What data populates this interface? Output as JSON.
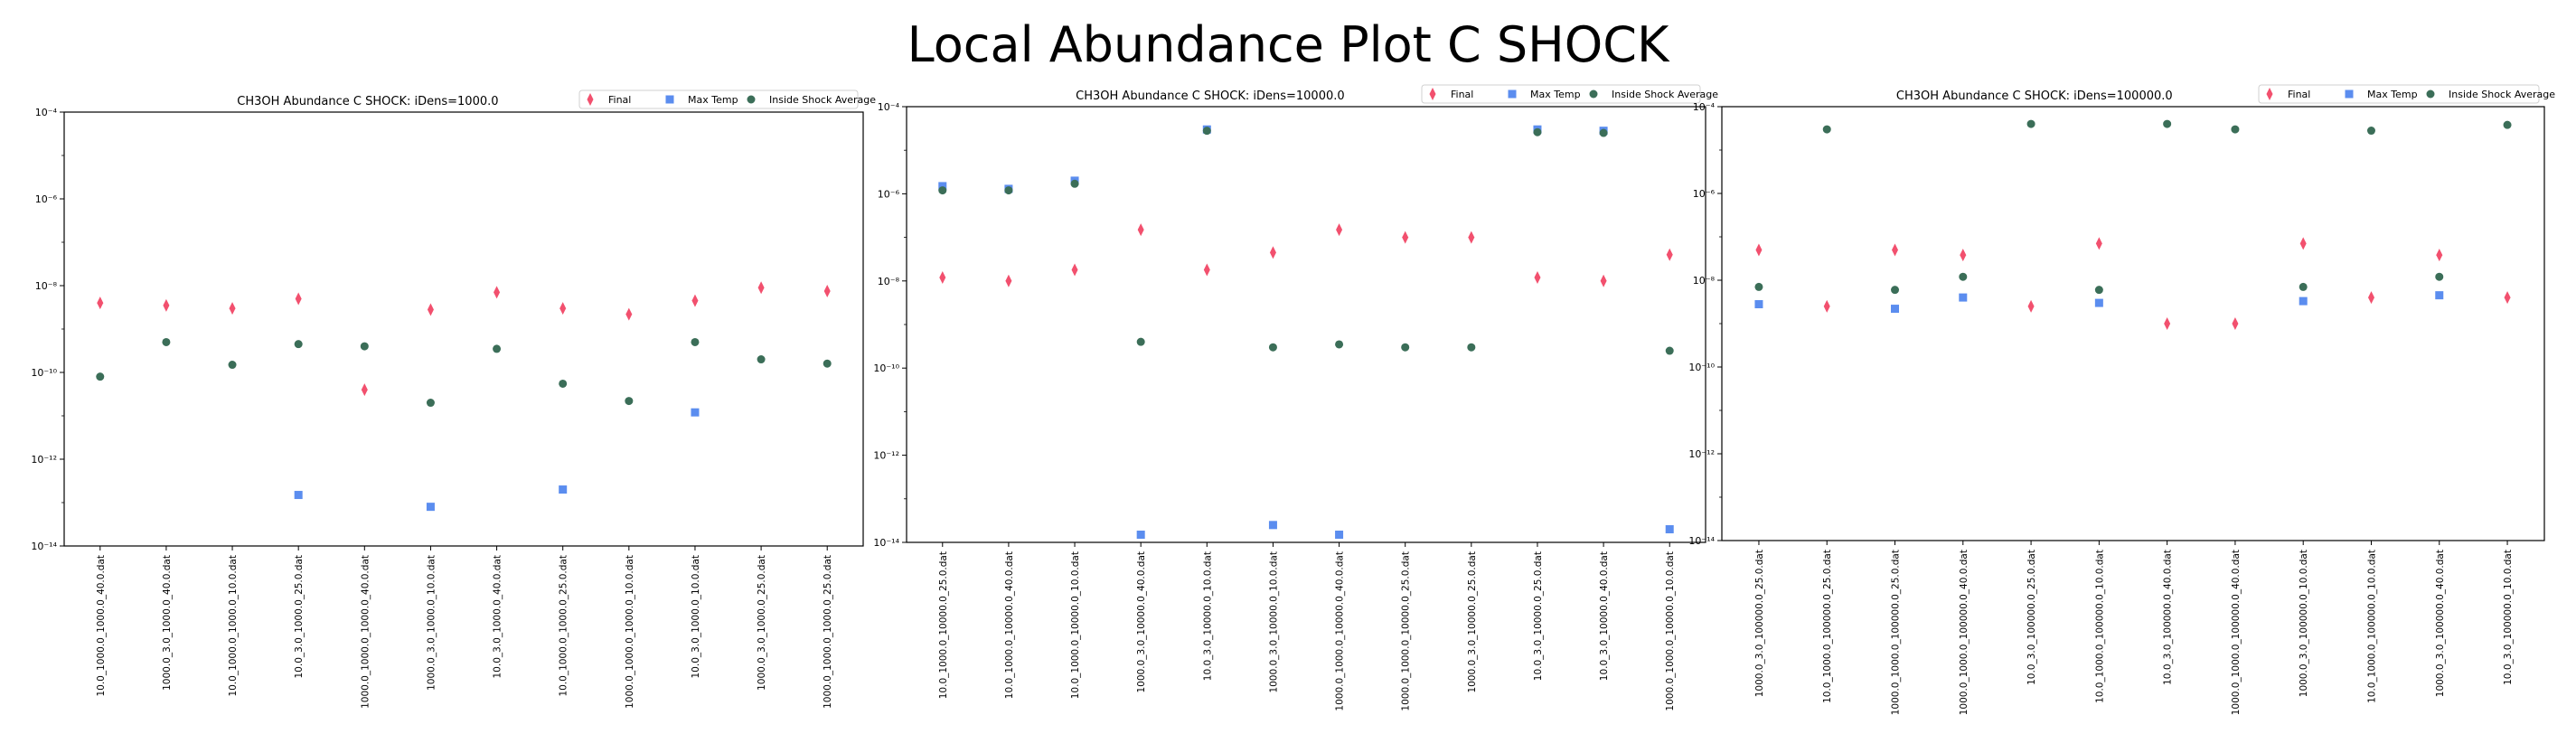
{
  "figure_title": "Local Abundance Plot C SHOCK",
  "colors": {
    "final": "#f2506e",
    "max_temp": "#5b8def",
    "avg": "#3b6e58"
  },
  "chart_data": [
    {
      "type": "scatter",
      "title": "CH3OH Abundance C SHOCK: iDens=1000.0",
      "yscale": "log",
      "ylim_exp": [
        -14,
        -4
      ],
      "yticks": [
        "10⁻¹⁴",
        "10⁻¹²",
        "10⁻¹⁰",
        "10⁻⁸",
        "10⁻⁶",
        "10⁻⁴"
      ],
      "legend": {
        "placement": "top-right",
        "entries": [
          "Final",
          "Max Temp",
          "Inside Shock Average"
        ]
      },
      "categories": [
        "10.0_1000.0_1000.0_40.0.dat",
        "1000.0_3.0_1000.0_40.0.dat",
        "10.0_1000.0_1000.0_10.0.dat",
        "10.0_3.0_1000.0_25.0.dat",
        "1000.0_1000.0_1000.0_40.0.dat",
        "1000.0_3.0_1000.0_10.0.dat",
        "10.0_3.0_1000.0_40.0.dat",
        "10.0_1000.0_1000.0_25.0.dat",
        "1000.0_1000.0_1000.0_10.0.dat",
        "10.0_3.0_1000.0_10.0.dat",
        "1000.0_3.0_1000.0_25.0.dat",
        "1000.0_1000.0_1000.0_25.0.dat"
      ],
      "series": [
        {
          "name": "Final",
          "values": [
            4e-09,
            3.5e-09,
            3e-09,
            5e-09,
            4e-11,
            2.8e-09,
            7e-09,
            3e-09,
            2.2e-09,
            4.5e-09,
            9e-09,
            7.5e-09
          ]
        },
        {
          "name": "Max Temp",
          "values": [
            null,
            null,
            null,
            1.5e-13,
            null,
            8e-14,
            null,
            2e-13,
            null,
            1.2e-11,
            null,
            null
          ]
        },
        {
          "name": "Inside Shock Average",
          "values": [
            8e-11,
            5e-10,
            1.5e-10,
            4.5e-10,
            4e-10,
            2e-11,
            3.5e-10,
            5.5e-11,
            2.2e-11,
            5e-10,
            2e-10,
            1.6e-10
          ]
        }
      ]
    },
    {
      "type": "scatter",
      "title": "CH3OH Abundance C SHOCK: iDens=10000.0",
      "yscale": "log",
      "ylim_exp": [
        -14,
        -4
      ],
      "yticks": [
        "10⁻¹⁴",
        "10⁻¹²",
        "10⁻¹⁰",
        "10⁻⁸",
        "10⁻⁶",
        "10⁻⁴"
      ],
      "legend": {
        "placement": "top-right",
        "entries": [
          "Final",
          "Max Temp",
          "Inside Shock Average"
        ]
      },
      "categories": [
        "10.0_1000.0_10000.0_25.0.dat",
        "10.0_1000.0_10000.0_40.0.dat",
        "10.0_1000.0_10000.0_10.0.dat",
        "1000.0_3.0_10000.0_40.0.dat",
        "10.0_3.0_10000.0_10.0.dat",
        "1000.0_3.0_10000.0_10.0.dat",
        "1000.0_1000.0_10000.0_40.0.dat",
        "1000.0_1000.0_10000.0_25.0.dat",
        "1000.0_3.0_10000.0_25.0.dat",
        "10.0_3.0_10000.0_25.0.dat",
        "10.0_3.0_10000.0_40.0.dat",
        "1000.0_1000.0_10000.0_10.0.dat"
      ],
      "series": [
        {
          "name": "Final",
          "values": [
            1.2e-08,
            1e-08,
            1.8e-08,
            1.5e-07,
            1.8e-08,
            4.5e-08,
            1.5e-07,
            1e-07,
            1e-07,
            1.2e-08,
            1e-08,
            4e-08
          ]
        },
        {
          "name": "Max Temp",
          "values": [
            1.5e-06,
            1.3e-06,
            2e-06,
            1.5e-14,
            3e-05,
            2.5e-14,
            1.5e-14,
            null,
            null,
            3e-05,
            2.8e-05,
            2e-14
          ]
        },
        {
          "name": "Inside Shock Average",
          "values": [
            1.2e-06,
            1.2e-06,
            1.7e-06,
            4e-10,
            2.8e-05,
            3e-10,
            3.5e-10,
            3e-10,
            3e-10,
            2.6e-05,
            2.5e-05,
            2.5e-10
          ]
        }
      ]
    },
    {
      "type": "scatter",
      "title": "CH3OH Abundance C SHOCK: iDens=100000.0",
      "yscale": "log",
      "ylim_exp": [
        -14,
        -4
      ],
      "yticks": [
        "10⁻¹⁴",
        "10⁻¹²",
        "10⁻¹⁰",
        "10⁻⁸",
        "10⁻⁶",
        "10⁻⁴"
      ],
      "legend": {
        "placement": "top-right",
        "entries": [
          "Final",
          "Max Temp",
          "Inside Shock Average"
        ]
      },
      "categories": [
        "1000.0_3.0_100000.0_25.0.dat",
        "10.0_1000.0_100000.0_25.0.dat",
        "1000.0_1000.0_100000.0_25.0.dat",
        "1000.0_1000.0_100000.0_40.0.dat",
        "10.0_3.0_100000.0_25.0.dat",
        "10.0_1000.0_100000.0_10.0.dat",
        "10.0_3.0_100000.0_40.0.dat",
        "1000.0_1000.0_100000.0_40.0.dat",
        "1000.0_3.0_100000.0_10.0.dat",
        "10.0_1000.0_100000.0_10.0.dat",
        "1000.0_3.0_100000.0_40.0.dat",
        "10.0_3.0_100000.0_10.0.dat"
      ],
      "series": [
        {
          "name": "Final",
          "values": [
            5e-08,
            2.5e-09,
            5e-08,
            3.8e-08,
            2.5e-09,
            7e-08,
            1e-09,
            1e-09,
            7e-08,
            4e-09,
            3.8e-08,
            4e-09
          ]
        },
        {
          "name": "Max Temp",
          "values": [
            2.8e-09,
            null,
            2.2e-09,
            4e-09,
            null,
            3e-09,
            null,
            null,
            3.3e-09,
            null,
            4.5e-09,
            null
          ]
        },
        {
          "name": "Inside Shock Average",
          "values": [
            7e-09,
            3e-05,
            6e-09,
            1.2e-08,
            4e-05,
            6e-09,
            4e-05,
            3e-05,
            7e-09,
            2.8e-05,
            1.2e-08,
            3.8e-05
          ]
        }
      ]
    }
  ]
}
